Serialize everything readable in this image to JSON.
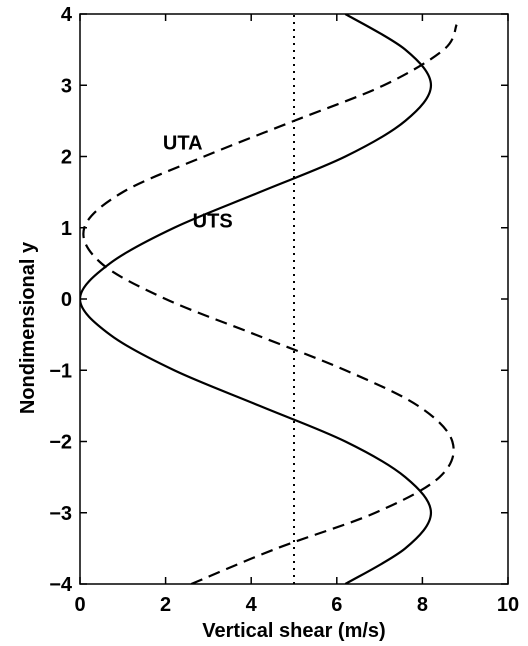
{
  "chart_data": {
    "type": "line",
    "title": "",
    "xlabel": "Vertical shear (m/s)",
    "ylabel": "Nondimensional y",
    "xlim": [
      0,
      10
    ],
    "ylim": [
      -4,
      4
    ],
    "xticks": [
      0,
      2,
      4,
      6,
      8,
      10
    ],
    "yticks": [
      -4,
      -3,
      -2,
      -1,
      0,
      1,
      2,
      3,
      4
    ],
    "x_tick_labels": [
      "0",
      "2",
      "4",
      "6",
      "8",
      "10"
    ],
    "y_tick_labels": [
      "−4",
      "−3",
      "−2",
      "−1",
      "0",
      "1",
      "2",
      "3",
      "4"
    ],
    "grid": false,
    "legend": "none",
    "series": [
      {
        "style": "solid",
        "color": "#000000",
        "y": [
          -4.0,
          -3.5,
          -3.0,
          -2.5,
          -2.0,
          -1.5,
          -1.0,
          -0.5,
          0.0,
          0.5,
          1.0,
          1.5,
          2.0,
          2.5,
          3.0,
          3.5,
          4.0
        ],
        "x": [
          6.2,
          7.6,
          8.2,
          7.6,
          6.2,
          4.2,
          2.2,
          0.7,
          0.0,
          0.7,
          2.2,
          4.2,
          6.2,
          7.6,
          8.2,
          7.6,
          6.2
        ]
      },
      {
        "style": "dashed",
        "color": "#000000",
        "y": [
          -4.0,
          -3.5,
          -3.0,
          -2.5,
          -2.0,
          -1.5,
          -1.0,
          -0.5,
          0.0,
          0.5,
          1.0,
          1.5,
          2.0,
          2.5,
          3.0,
          3.5,
          3.85
        ],
        "x": [
          2.6,
          4.6,
          6.9,
          8.4,
          8.7,
          7.9,
          6.2,
          4.1,
          2.0,
          0.5,
          0.1,
          1.0,
          2.9,
          5.0,
          7.1,
          8.5,
          8.8
        ]
      },
      {
        "style": "dotted",
        "color": "#000000",
        "y": [
          -4,
          4
        ],
        "x": [
          5,
          5
        ]
      }
    ],
    "annotations": [
      {
        "text": "UTA",
        "x": 2.4,
        "y": 2.2
      },
      {
        "text": "UTS",
        "x": 3.1,
        "y": 1.1
      }
    ]
  }
}
